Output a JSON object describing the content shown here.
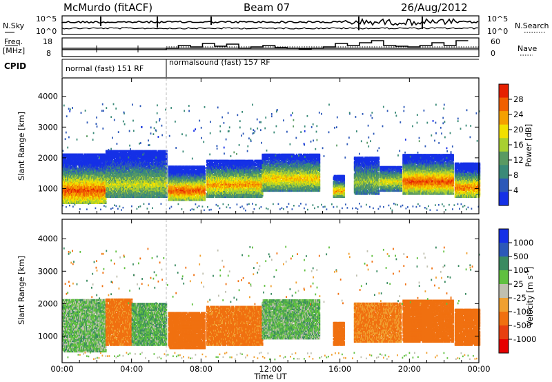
{
  "header": {
    "radar": "McMurdo (fitACF)",
    "beam": "Beam 07",
    "date": "26/Aug/2012"
  },
  "noise_panel": {
    "left_label": "N.Sky",
    "right_label": "N.Search",
    "left_ticks": [
      "10^5",
      "10^0"
    ],
    "right_ticks": [
      "10^5",
      "10^0"
    ]
  },
  "freq_panel": {
    "left_label_1": "Freq.",
    "left_label_2": "[MHz]",
    "right_label": "Nave",
    "left_ticks": [
      "18",
      "8"
    ],
    "right_ticks": [
      "60",
      "0"
    ]
  },
  "cpid": {
    "label": "CPID",
    "modes": [
      {
        "name": "normal (fast) 151 RF",
        "start_hour": 0,
        "end_hour": 6
      },
      {
        "name": "normalsound (fast) 157 RF",
        "start_hour": 6,
        "end_hour": 24
      }
    ]
  },
  "colors": {
    "power_scale": [
      "#1530e6",
      "#2c58b8",
      "#3a8a78",
      "#5a9a62",
      "#a8d030",
      "#f2e000",
      "#f5a000",
      "#f06000",
      "#e62000"
    ],
    "velocity_scale": [
      "#1530e6",
      "#2c58b8",
      "#3a8a60",
      "#60c040",
      "#c0c0b0",
      "#f0a030",
      "#f07010",
      "#e84010",
      "#e60000"
    ]
  },
  "chart_data": [
    {
      "type": "heatmap",
      "title": "Power",
      "ylabel": "Slant Range [km]",
      "ylim": [
        180,
        4600
      ],
      "yticks": [
        "1000",
        "2000",
        "3000",
        "4000"
      ],
      "xlim_hours": [
        0,
        24
      ],
      "colorbar": {
        "label": "Power [dB]",
        "min": 0,
        "max": 32,
        "ticks": [
          "4",
          "8",
          "12",
          "16",
          "20",
          "24",
          "28"
        ]
      },
      "echo_regions": [
        {
          "t0": 0.0,
          "t1": 2.5,
          "r0": 500,
          "r1": 2100,
          "core": 900,
          "peak_db": 28
        },
        {
          "t0": 2.5,
          "t1": 6.0,
          "r0": 700,
          "r1": 2200,
          "core": 1100,
          "peak_db": 18
        },
        {
          "t0": 6.1,
          "t1": 8.2,
          "r0": 600,
          "r1": 1700,
          "core": 900,
          "peak_db": 28
        },
        {
          "t0": 8.3,
          "t1": 11.5,
          "r0": 700,
          "r1": 1900,
          "core": 1100,
          "peak_db": 24
        },
        {
          "t0": 11.5,
          "t1": 14.8,
          "r0": 900,
          "r1": 2100,
          "core": 1300,
          "peak_db": 22
        },
        {
          "t0": 15.6,
          "t1": 16.2,
          "r0": 700,
          "r1": 1400,
          "core": 900,
          "peak_db": 24
        },
        {
          "t0": 16.8,
          "t1": 18.2,
          "r0": 800,
          "r1": 2000,
          "core": 1200,
          "peak_db": 16
        },
        {
          "t0": 18.3,
          "t1": 19.5,
          "r0": 900,
          "r1": 1700,
          "core": 1200,
          "peak_db": 20
        },
        {
          "t0": 19.6,
          "t1": 22.5,
          "r0": 800,
          "r1": 2100,
          "core": 1200,
          "peak_db": 28
        },
        {
          "t0": 22.6,
          "t1": 24.0,
          "r0": 700,
          "r1": 1800,
          "core": 1000,
          "peak_db": 26
        }
      ]
    },
    {
      "type": "heatmap",
      "title": "Velocity",
      "ylabel": "Slant Range [km]",
      "xlabel": "Time UT",
      "ylim": [
        180,
        4600
      ],
      "yticks": [
        "1000",
        "2000",
        "3000",
        "4000"
      ],
      "xlim_hours": [
        0,
        24
      ],
      "xticks": [
        "00:00",
        "04:00",
        "08:00",
        "12:00",
        "16:00",
        "20:00",
        "00:00"
      ],
      "colorbar": {
        "label": "Velocity [m s^-1]",
        "ticks": [
          "1000",
          "500",
          "100",
          "25",
          "-25",
          "-100",
          "-500",
          "-1000"
        ]
      },
      "echo_regions": [
        {
          "t0": 0.0,
          "t1": 2.5,
          "r0": 500,
          "r1": 2100,
          "vel_mps": 60
        },
        {
          "t0": 2.5,
          "t1": 4.0,
          "r0": 700,
          "r1": 2100,
          "vel_mps": -150
        },
        {
          "t0": 4.0,
          "t1": 6.0,
          "r0": 700,
          "r1": 2000,
          "vel_mps": 80
        },
        {
          "t0": 6.1,
          "t1": 8.2,
          "r0": 600,
          "r1": 1700,
          "vel_mps": -200
        },
        {
          "t0": 8.3,
          "t1": 11.5,
          "r0": 700,
          "r1": 1900,
          "vel_mps": -150
        },
        {
          "t0": 11.5,
          "t1": 14.8,
          "r0": 900,
          "r1": 2100,
          "vel_mps": 70
        },
        {
          "t0": 15.6,
          "t1": 16.2,
          "r0": 700,
          "r1": 1400,
          "vel_mps": -250
        },
        {
          "t0": 16.8,
          "t1": 19.5,
          "r0": 800,
          "r1": 2000,
          "vel_mps": -120
        },
        {
          "t0": 19.6,
          "t1": 22.5,
          "r0": 800,
          "r1": 2100,
          "vel_mps": -180
        },
        {
          "t0": 22.6,
          "t1": 24.0,
          "r0": 700,
          "r1": 1800,
          "vel_mps": -200
        }
      ]
    }
  ]
}
